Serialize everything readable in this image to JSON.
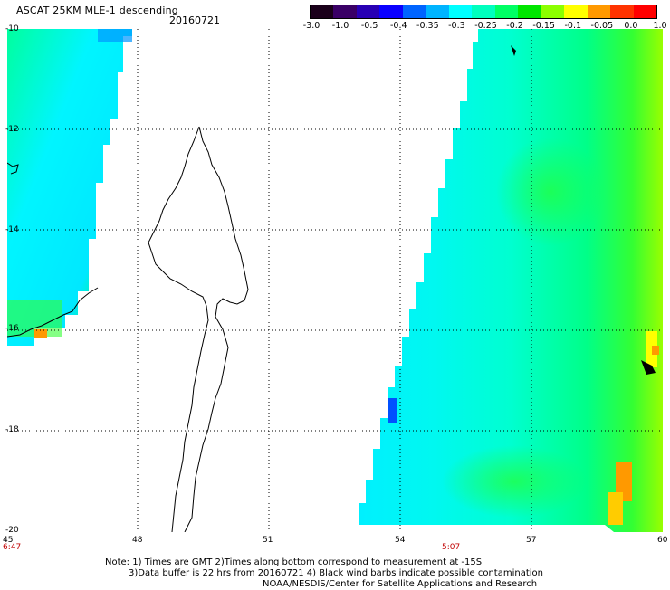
{
  "header": {
    "title": "ASCAT 25KM MLE-1 descending",
    "date": "20160721"
  },
  "colorbar": {
    "colors": [
      "#1a001a",
      "#3a0066",
      "#2800b4",
      "#0a00ff",
      "#0064ff",
      "#00b4ff",
      "#00ffff",
      "#00ffbe",
      "#00ff64",
      "#00e600",
      "#8cff00",
      "#ffff00",
      "#ff9900",
      "#ff3300",
      "#ff0000"
    ],
    "labels": [
      "-3.0",
      "-1.0",
      "-0.5",
      "-0.4",
      "-0.35",
      "-0.3",
      "-0.25",
      "-0.2",
      "-0.15",
      "-0.1",
      "-0.05",
      "0.0",
      "1.0"
    ]
  },
  "map": {
    "lon_range": [
      45,
      60
    ],
    "lat_range": [
      -20,
      -10
    ],
    "x_ticks": [
      "45",
      "48",
      "51",
      "54",
      "57",
      "60"
    ],
    "y_ticks": [
      "-10",
      "-12",
      "-14",
      "-16",
      "-18",
      "-20"
    ],
    "times": [
      "6:47",
      "5:07"
    ],
    "gridlines": "dotted",
    "colors": {
      "cyan": "#00ffe6",
      "green": "#00f064",
      "yellow": "#ffff00",
      "orange": "#ff9900"
    }
  },
  "footer": {
    "line1": "Note: 1) Times are GMT 2)Times along bottom correspond to measurement at -15S",
    "line2": "3)Data buffer is 22 hrs from 20160721 4) Black wind barbs indicate possible contamination",
    "line3": "NOAA/NESDIS/Center for Satellite Applications and Research"
  }
}
